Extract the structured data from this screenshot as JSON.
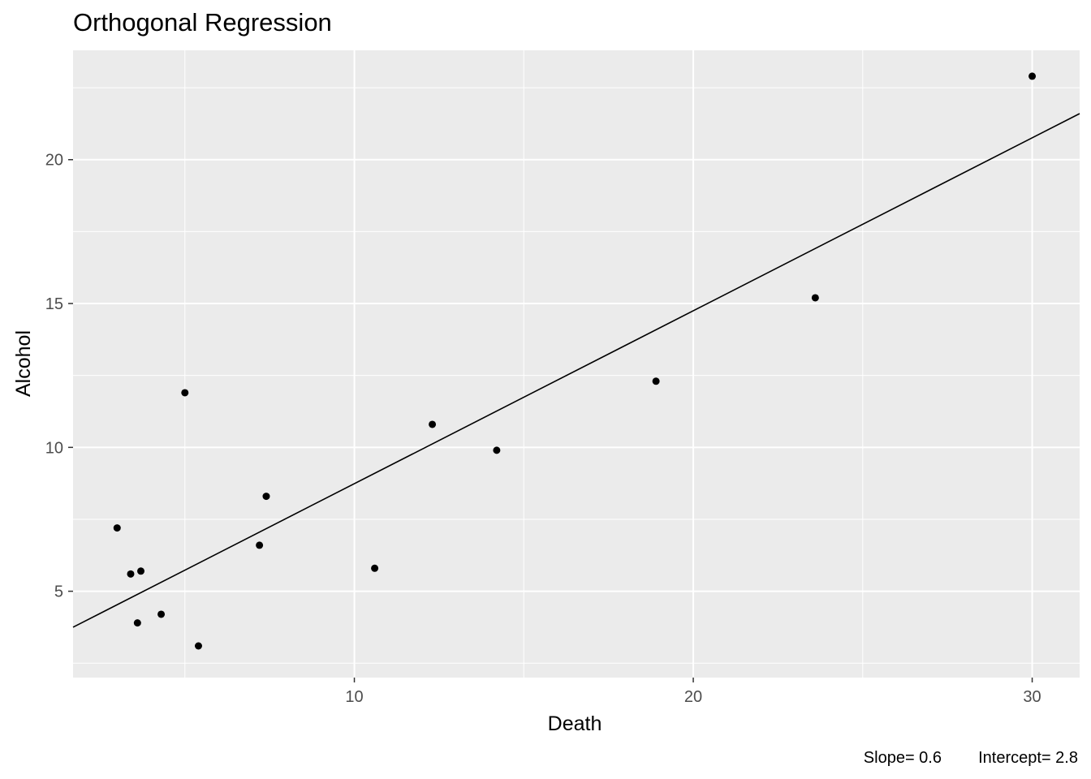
{
  "chart_data": {
    "type": "scatter",
    "title": "Orthogonal Regression",
    "xlabel": "Death",
    "ylabel": "Alcohol",
    "xlim": [
      1.7,
      31.4
    ],
    "ylim": [
      2.0,
      23.8
    ],
    "x_ticks": [
      10,
      20,
      30
    ],
    "y_ticks": [
      5,
      10,
      15,
      20
    ],
    "x_tick_labels": [
      "10",
      "20",
      "30"
    ],
    "y_tick_labels": [
      "5",
      "10",
      "15",
      "20"
    ],
    "grid": true,
    "legend": "none",
    "points": [
      {
        "x": 3.0,
        "y": 7.2
      },
      {
        "x": 3.4,
        "y": 5.6
      },
      {
        "x": 3.6,
        "y": 3.9
      },
      {
        "x": 3.7,
        "y": 5.7
      },
      {
        "x": 4.3,
        "y": 4.2
      },
      {
        "x": 5.0,
        "y": 11.9
      },
      {
        "x": 5.4,
        "y": 3.1
      },
      {
        "x": 7.2,
        "y": 6.6
      },
      {
        "x": 7.4,
        "y": 8.3
      },
      {
        "x": 10.6,
        "y": 5.8
      },
      {
        "x": 12.3,
        "y": 10.8
      },
      {
        "x": 14.2,
        "y": 9.9
      },
      {
        "x": 18.9,
        "y": 12.3
      },
      {
        "x": 23.6,
        "y": 15.2
      },
      {
        "x": 30.0,
        "y": 22.9
      }
    ],
    "fit_line": {
      "slope": 0.6,
      "intercept": 2.8,
      "y_at_xmin": 3.75,
      "y_at_xmax": 21.6
    },
    "caption": {
      "slope_text": "Slope= 0.6",
      "intercept_text": "Intercept= 2.8"
    }
  }
}
